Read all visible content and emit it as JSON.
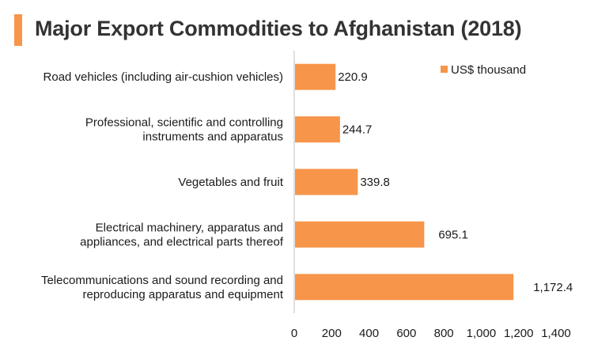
{
  "chart_data": {
    "type": "bar",
    "orientation": "horizontal",
    "title": "Major Export Commodities to Afghanistan (2018)",
    "categories": [
      "Road vehicles (including air-cushion vehicles)",
      "Professional, scientific and controlling instruments and apparatus",
      "Vegetables and fruit",
      "Electrical machinery, apparatus and appliances, and electrical parts thereof",
      "Telecommunications and sound recording and reproducing apparatus and equipment"
    ],
    "category_lines": [
      [
        "Road vehicles (including air-cushion vehicles)"
      ],
      [
        "Professional, scientific and controlling",
        "instruments and apparatus"
      ],
      [
        "Vegetables and fruit"
      ],
      [
        "Electrical machinery, apparatus and",
        "appliances, and electrical parts thereof"
      ],
      [
        "Telecommunications and sound recording and",
        "reproducing apparatus and equipment"
      ]
    ],
    "series": [
      {
        "name": "US$ thousand",
        "values": [
          220.9,
          244.7,
          339.8,
          695.1,
          1172.4
        ],
        "labels": [
          "220.9",
          "244.7",
          "339.8",
          "695.1",
          "1,172.4"
        ]
      }
    ],
    "xlim": [
      0,
      1400
    ],
    "xticks": [
      0,
      200,
      400,
      600,
      800,
      1000,
      1200,
      1400
    ],
    "xtick_labels": [
      "0",
      "200",
      "400",
      "600",
      "800",
      "1,000",
      "1,200",
      "1,400"
    ],
    "legend_position": "top-right",
    "grid": false,
    "bar_color": "#f7954a"
  }
}
